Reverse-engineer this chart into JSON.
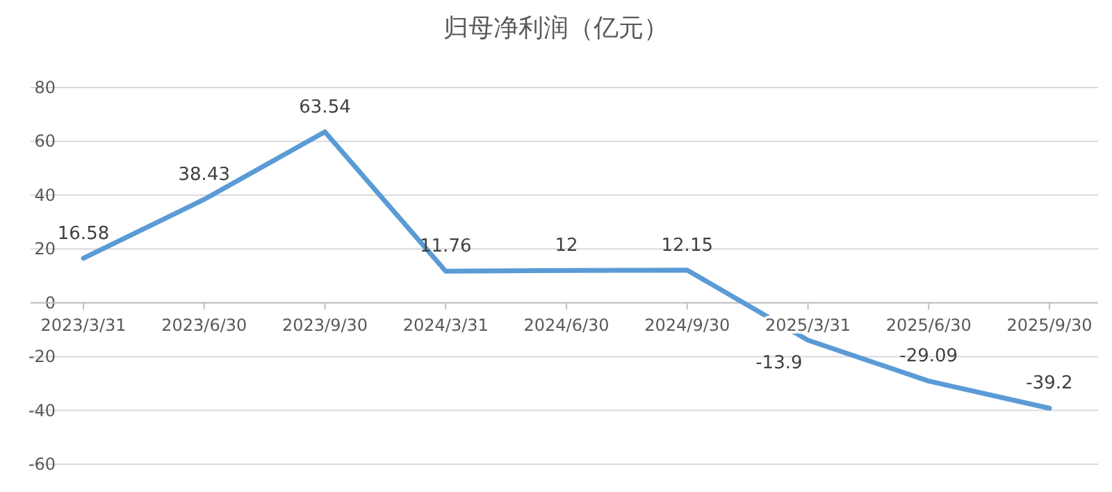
{
  "chart_data": {
    "type": "line",
    "title": "归母净利润（亿元）",
    "categories": [
      "2023/3/31",
      "2023/6/30",
      "2023/9/30",
      "2024/3/31",
      "2024/6/30",
      "2024/9/30",
      "2025/3/31",
      "2025/6/30",
      "2025/9/30"
    ],
    "values": [
      16.58,
      38.43,
      63.54,
      11.76,
      12,
      12.15,
      -13.9,
      -29.09,
      -39.2
    ],
    "color": "#5b9bd5",
    "ylim": [
      -60,
      80
    ],
    "yticks": [
      -60,
      -40,
      -20,
      0,
      20,
      40,
      60,
      80
    ],
    "grid": "y",
    "data_labels": true,
    "marker": "none"
  }
}
